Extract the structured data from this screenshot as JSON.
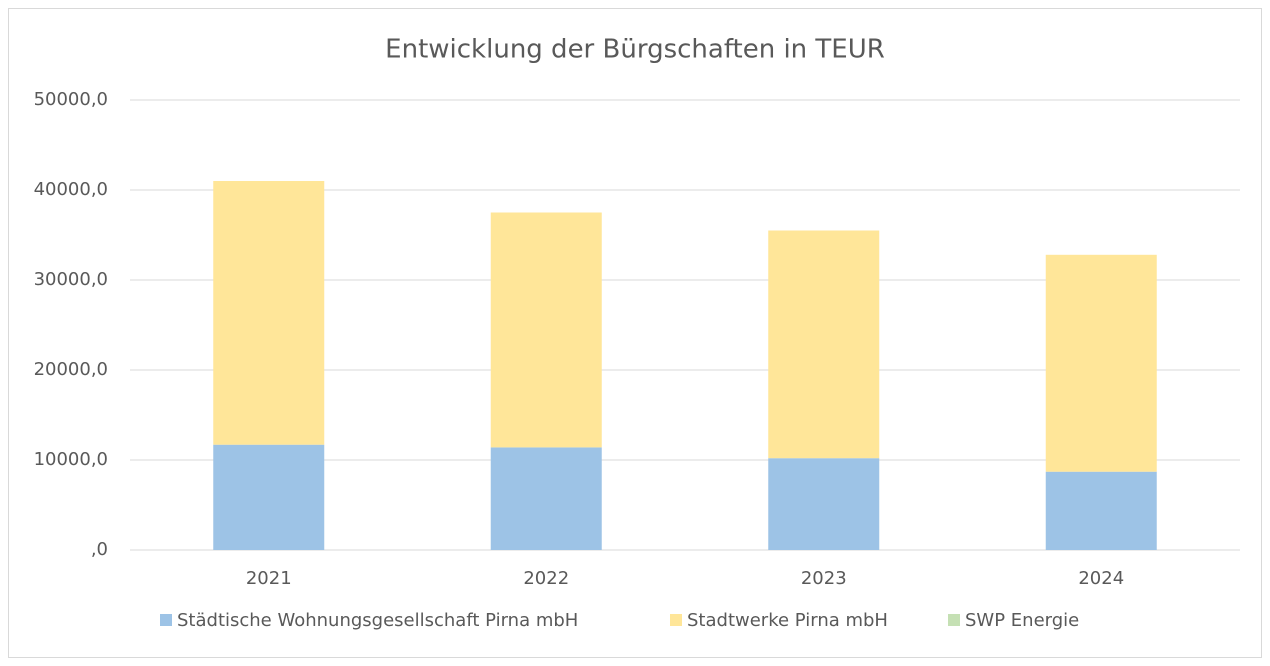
{
  "chart_data": {
    "type": "stacked_bar",
    "title": "Entwicklung der Bürgschaften in TEUR",
    "categories": [
      "2021",
      "2022",
      "2023",
      "2024"
    ],
    "series": [
      {
        "name": "Städtische Wohnungsgesellschaft Pirna mbH",
        "color": "#9dc3e6",
        "values": [
          11700,
          11400,
          10200,
          8700
        ]
      },
      {
        "name": "Stadtwerke Pirna mbH",
        "color": "#ffe699",
        "values": [
          29300,
          26100,
          25300,
          24100
        ]
      },
      {
        "name": "SWP Energie",
        "color": "#c5e0b4",
        "values": [
          0,
          0,
          0,
          0
        ]
      }
    ],
    "ylim": [
      0,
      50000
    ],
    "yticks": [
      {
        "value": 0,
        "label": ",0"
      },
      {
        "value": 10000,
        "label": "10000,0"
      },
      {
        "value": 20000,
        "label": "20000,0"
      },
      {
        "value": 30000,
        "label": "30000,0"
      },
      {
        "value": 40000,
        "label": "40000,0"
      },
      {
        "value": 50000,
        "label": "50000,0"
      }
    ],
    "grid": true,
    "legend": "bottom"
  }
}
